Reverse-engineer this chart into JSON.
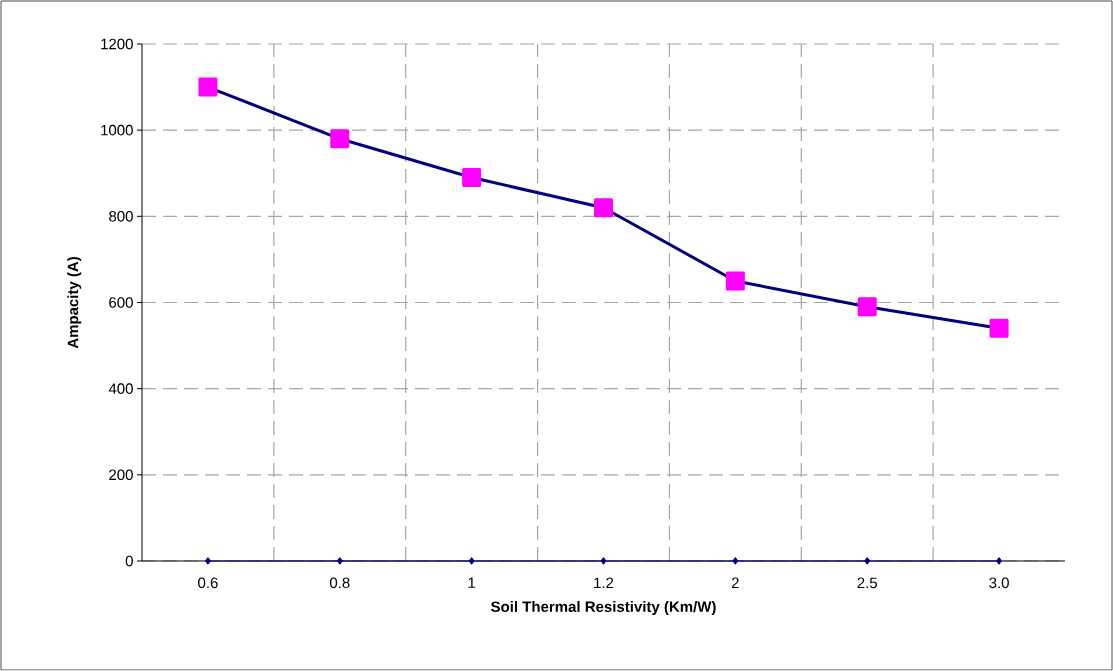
{
  "chart_data": {
    "type": "line",
    "xlabel": "Soil Thermal Resistivity (Km/W)",
    "ylabel": "Ampacity (A)",
    "categories": [
      "0.6",
      "0.8",
      "1",
      "1.2",
      "2",
      "2.5",
      "3.0"
    ],
    "series": [
      {
        "color": "#000080",
        "marker": "square",
        "colors": [
          "#ff00ff",
          "#ff00ff",
          "#ff00ff",
          "#ff00ff",
          "#ff00ff",
          "#ff00ff",
          "#ff00ff"
        ],
        "values": [
          1100,
          980,
          890,
          820,
          650,
          590,
          540
        ]
      },
      {
        "color": "#000080",
        "marker": "diamond",
        "values": [
          0,
          0,
          0,
          0,
          0,
          0,
          0
        ]
      }
    ],
    "ylim": [
      0,
      1200
    ],
    "yticks": [
      0,
      200,
      400,
      600,
      800,
      1000,
      1200
    ],
    "grid": true,
    "line_style": "solid"
  }
}
